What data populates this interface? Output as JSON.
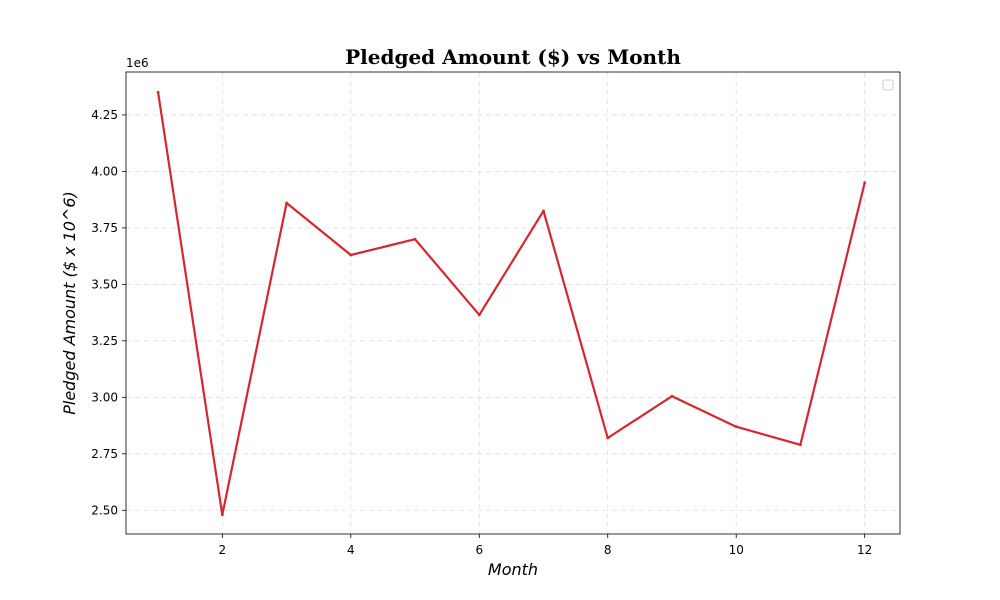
{
  "chart_data": {
    "type": "line",
    "title": "Pledged Amount ($) vs Month",
    "xlabel": "Month",
    "ylabel": "Pledged Amount ($ x 10^6)",
    "y_offset_label": "1e6",
    "x": [
      1,
      2,
      3,
      4,
      5,
      6,
      7,
      8,
      9,
      10,
      11,
      12
    ],
    "series": [
      {
        "values": [
          4350000,
          2480000,
          3860000,
          3630000,
          3700000,
          3365000,
          3825000,
          2820000,
          3005000,
          2870000,
          2790000,
          3950000
        ],
        "color": "#d62630"
      }
    ],
    "xlim": [
      0.5,
      12.55
    ],
    "ylim": [
      2395000,
      4440000
    ],
    "xticks": [
      2,
      4,
      6,
      8,
      10,
      12
    ],
    "xtick_labels": [
      "2",
      "4",
      "6",
      "8",
      "10",
      "12"
    ],
    "yticks": [
      2500000,
      2750000,
      3000000,
      3250000,
      3500000,
      3750000,
      4000000,
      4250000
    ],
    "ytick_labels": [
      "2.50",
      "2.75",
      "3.00",
      "3.25",
      "3.50",
      "3.75",
      "4.00",
      "4.25"
    ],
    "grid": true,
    "legend": {
      "placement": "top-right",
      "entries": []
    }
  }
}
